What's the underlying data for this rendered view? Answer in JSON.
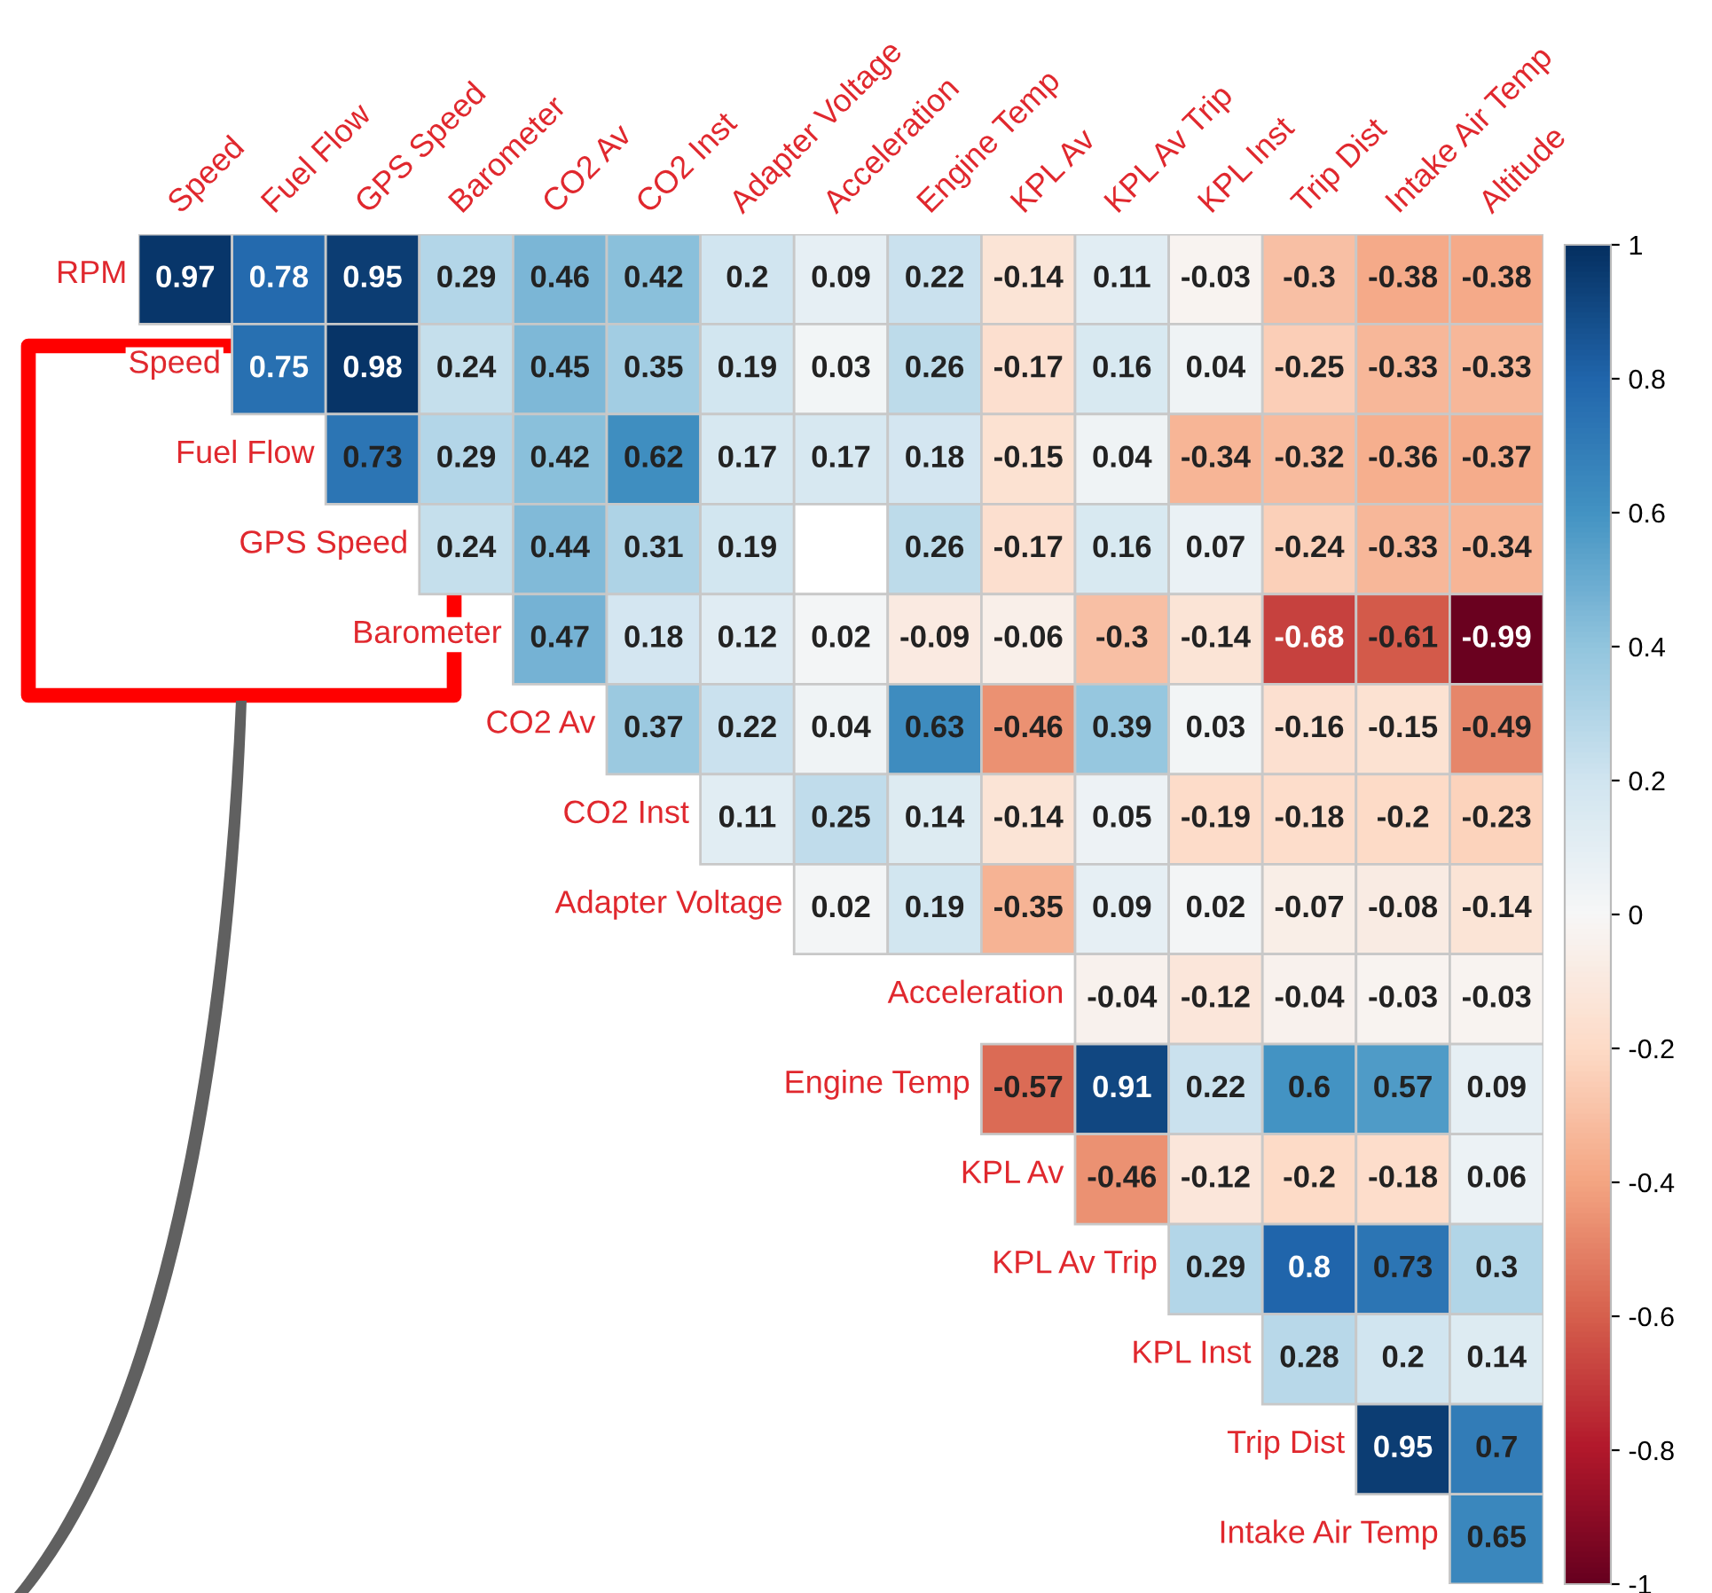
{
  "chart_data": {
    "type": "heatmap",
    "categories": [
      "Speed",
      "Fuel Flow",
      "GPS Speed",
      "Barometer",
      "CO2 Av",
      "CO2 Inst",
      "Adapter Voltage",
      "Acceleration",
      "Engine Temp",
      "KPL Av",
      "KPL Av Trip",
      "KPL Inst",
      "Trip Dist",
      "Intake Air Temp",
      "Altitude"
    ],
    "y_categories": [
      "RPM",
      "Speed",
      "Fuel Flow",
      "GPS Speed",
      "Barometer",
      "CO2 Av",
      "CO2 Inst",
      "Adapter Voltage",
      "Acceleration",
      "Engine Temp",
      "KPL Av",
      "KPL Av Trip",
      "KPL Inst",
      "Trip Dist",
      "Intake Air Temp"
    ],
    "cells": [
      [
        0.97,
        0.78,
        0.95,
        0.29,
        0.46,
        0.42,
        0.2,
        0.09,
        0.22,
        -0.14,
        0.11,
        -0.03,
        -0.3,
        -0.38,
        -0.38
      ],
      [
        null,
        0.75,
        0.98,
        0.24,
        0.45,
        0.35,
        0.19,
        0.03,
        0.26,
        -0.17,
        0.16,
        0.04,
        -0.25,
        -0.33,
        -0.33
      ],
      [
        null,
        null,
        0.73,
        0.29,
        0.42,
        0.62,
        0.17,
        0.17,
        0.18,
        -0.15,
        0.04,
        -0.34,
        -0.32,
        -0.36,
        -0.37
      ],
      [
        null,
        null,
        null,
        0.24,
        0.44,
        0.31,
        0.19,
        null,
        0.26,
        -0.17,
        0.16,
        0.07,
        -0.24,
        -0.33,
        -0.34
      ],
      [
        null,
        null,
        null,
        null,
        0.47,
        0.18,
        0.12,
        0.02,
        -0.09,
        -0.06,
        -0.3,
        -0.14,
        -0.68,
        -0.61,
        -0.99
      ],
      [
        null,
        null,
        null,
        null,
        null,
        0.37,
        0.22,
        0.04,
        0.63,
        -0.46,
        0.39,
        0.03,
        -0.16,
        -0.15,
        -0.49
      ],
      [
        null,
        null,
        null,
        null,
        null,
        null,
        0.11,
        0.25,
        0.14,
        -0.14,
        0.05,
        -0.19,
        -0.18,
        -0.2,
        -0.23
      ],
      [
        null,
        null,
        null,
        null,
        null,
        null,
        null,
        0.02,
        0.19,
        -0.35,
        0.09,
        0.02,
        -0.07,
        -0.08,
        -0.14
      ],
      [
        null,
        null,
        null,
        null,
        null,
        null,
        null,
        null,
        null,
        null,
        -0.04,
        -0.12,
        -0.04,
        -0.03,
        -0.03
      ],
      [
        null,
        null,
        null,
        null,
        null,
        null,
        null,
        null,
        null,
        -0.57,
        0.91,
        0.22,
        0.6,
        0.57,
        0.09
      ],
      [
        null,
        null,
        null,
        null,
        null,
        null,
        null,
        null,
        null,
        null,
        -0.46,
        -0.12,
        -0.2,
        -0.18,
        0.06
      ],
      [
        null,
        null,
        null,
        null,
        null,
        null,
        null,
        null,
        null,
        null,
        null,
        0.29,
        0.8,
        0.73,
        0.3
      ],
      [
        null,
        null,
        null,
        null,
        null,
        null,
        null,
        null,
        null,
        null,
        null,
        null,
        0.28,
        0.2,
        0.14
      ],
      [
        null,
        null,
        null,
        null,
        null,
        null,
        null,
        null,
        null,
        null,
        null,
        null,
        null,
        0.95,
        0.7
      ],
      [
        null,
        null,
        null,
        null,
        null,
        null,
        null,
        null,
        null,
        null,
        null,
        null,
        null,
        null,
        0.65
      ]
    ],
    "cell_labels": [
      [
        "0.97",
        "0.78",
        "0.95",
        "0.29",
        "0.46",
        "0.42",
        "0.2",
        "0.09",
        "0.22",
        "-0.14",
        "0.11",
        "-0.03",
        "-0.3",
        "-0.38",
        "-0.38"
      ],
      [
        null,
        "0.75",
        "0.98",
        "0.24",
        "0.45",
        "0.35",
        "0.19",
        "0.03",
        "0.26",
        "-0.17",
        "0.16",
        "0.04",
        "-0.25",
        "-0.33",
        "-0.33"
      ],
      [
        null,
        null,
        "0.73",
        "0.29",
        "0.42",
        "0.62",
        "0.17",
        "0.17",
        "0.18",
        "-0.15",
        "0.04",
        "-0.34",
        "-0.32",
        "-0.36",
        "-0.37"
      ],
      [
        null,
        null,
        null,
        "0.24",
        "0.44",
        "0.31",
        "0.19",
        null,
        "0.26",
        "-0.17",
        "0.16",
        "0.07",
        "-0.24",
        "-0.33",
        "-0.34"
      ],
      [
        null,
        null,
        null,
        null,
        "0.47",
        "0.18",
        "0.12",
        "0.02",
        "-0.09",
        "-0.06",
        "-0.3",
        "-0.14",
        "-0.68",
        "-0.61",
        "-0.99"
      ],
      [
        null,
        null,
        null,
        null,
        null,
        "0.37",
        "0.22",
        "0.04",
        "0.63",
        "-0.46",
        "0.39",
        "0.03",
        "-0.16",
        "-0.15",
        "-0.49"
      ],
      [
        null,
        null,
        null,
        null,
        null,
        null,
        "0.11",
        "0.25",
        "0.14",
        "-0.14",
        "0.05",
        "-0.19",
        "-0.18",
        "-0.2",
        "-0.23"
      ],
      [
        null,
        null,
        null,
        null,
        null,
        null,
        null,
        "0.02",
        "0.19",
        "-0.35",
        "0.09",
        "0.02",
        "-0.07",
        "-0.08",
        "-0.14"
      ],
      [
        null,
        null,
        null,
        null,
        null,
        null,
        null,
        null,
        null,
        null,
        "-0.04",
        "-0.12",
        "-0.04",
        "-0.03",
        "-0.03"
      ],
      [
        null,
        null,
        null,
        null,
        null,
        null,
        null,
        null,
        null,
        "-0.57",
        "0.91",
        "0.22",
        "0.6",
        "0.57",
        "0.09"
      ],
      [
        null,
        null,
        null,
        null,
        null,
        null,
        null,
        null,
        null,
        null,
        "-0.46",
        "-0.12",
        "-0.2",
        "-0.18",
        "0.06"
      ],
      [
        null,
        null,
        null,
        null,
        null,
        null,
        null,
        null,
        null,
        null,
        null,
        "0.29",
        "0.8",
        "0.73",
        "0.3"
      ],
      [
        null,
        null,
        null,
        null,
        null,
        null,
        null,
        null,
        null,
        null,
        null,
        null,
        "0.28",
        "0.2",
        "0.14"
      ],
      [
        null,
        null,
        null,
        null,
        null,
        null,
        null,
        null,
        null,
        null,
        null,
        null,
        null,
        "0.95",
        "0.7"
      ],
      [
        null,
        null,
        null,
        null,
        null,
        null,
        null,
        null,
        null,
        null,
        null,
        null,
        null,
        null,
        "0.65"
      ]
    ],
    "clim": [
      -1,
      1
    ],
    "cticks": [
      -1,
      -0.8,
      -0.6,
      -0.4,
      -0.2,
      0,
      0.2,
      0.4,
      0.6,
      0.8,
      1
    ]
  }
}
